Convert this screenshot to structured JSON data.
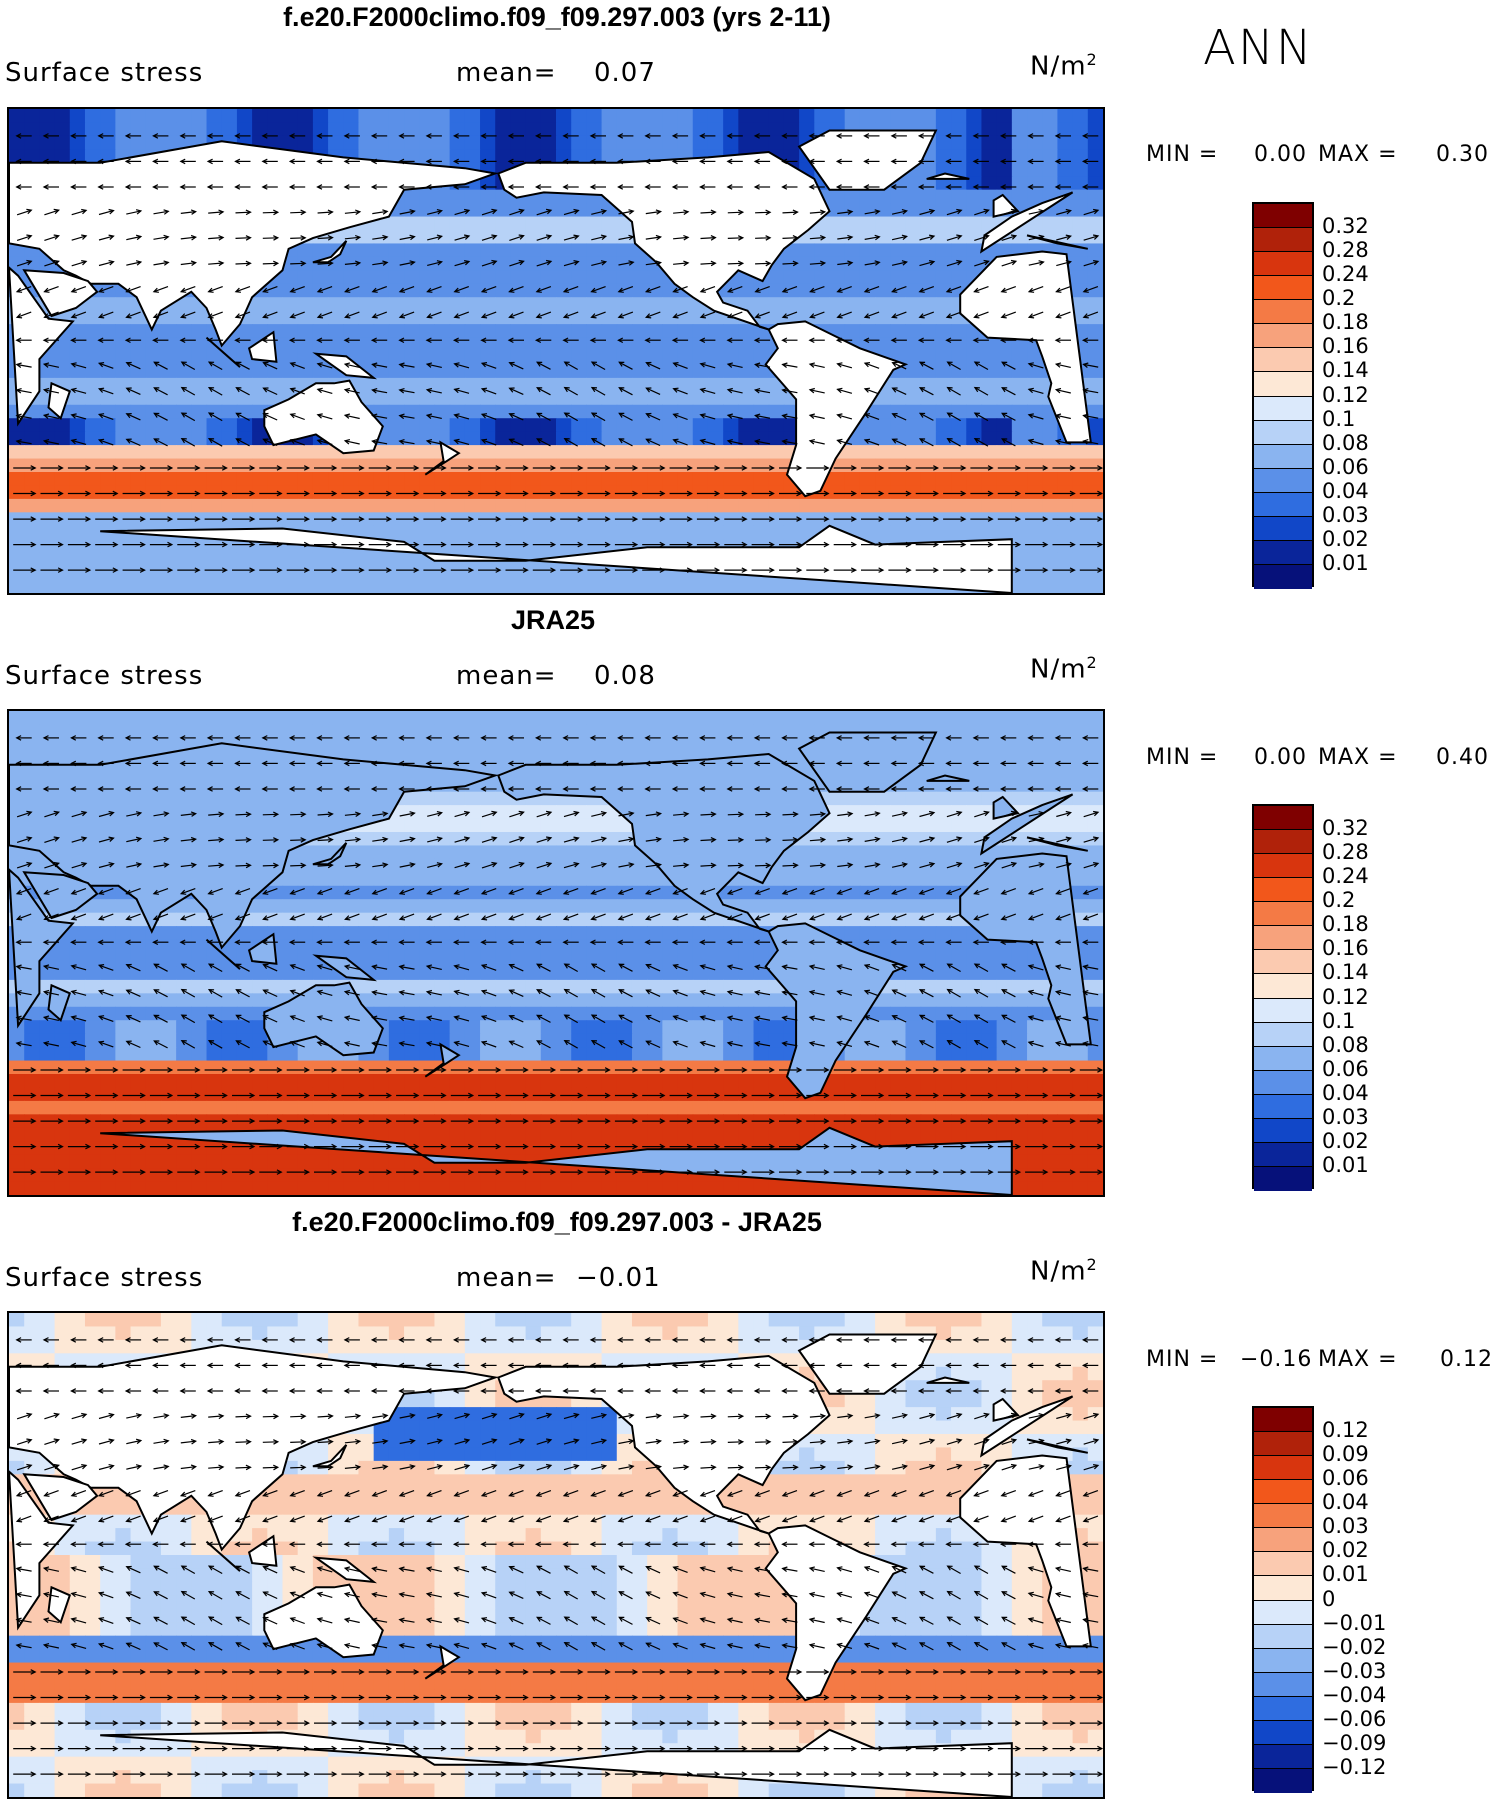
{
  "season_label": "ANN",
  "panels": [
    {
      "title": "f.e20.F2000climo.f09_f09.297.003 (yrs 2-11)",
      "variable": "Surface stress",
      "mean_label": "mean=",
      "mean_value": "0.07",
      "units": "N/m",
      "units_exp": "2",
      "min_label": "MIN =",
      "min_value": "0.00",
      "max_label": "MAX =",
      "max_value": "0.30",
      "colorbar_ticks": [
        "0.32",
        "0.28",
        "0.24",
        "0.2",
        "0.18",
        "0.16",
        "0.14",
        "0.12",
        "0.1",
        "0.08",
        "0.06",
        "0.04",
        "0.03",
        "0.02",
        "0.01"
      ],
      "pattern": "model"
    },
    {
      "title": "JRA25",
      "variable": "Surface stress",
      "mean_label": "mean=",
      "mean_value": "0.08",
      "units": "N/m",
      "units_exp": "2",
      "min_label": "MIN =",
      "min_value": "0.00",
      "max_label": "MAX =",
      "max_value": "0.40",
      "colorbar_ticks": [
        "0.32",
        "0.28",
        "0.24",
        "0.2",
        "0.18",
        "0.16",
        "0.14",
        "0.12",
        "0.1",
        "0.08",
        "0.06",
        "0.04",
        "0.03",
        "0.02",
        "0.01"
      ],
      "pattern": "obs"
    },
    {
      "title": "f.e20.F2000climo.f09_f09.297.003 - JRA25",
      "variable": "Surface stress",
      "mean_label": "mean=",
      "mean_value": "−0.01",
      "units": "N/m",
      "units_exp": "2",
      "min_label": "MIN =",
      "min_value": "−0.16",
      "max_label": "MAX =",
      "max_value": "0.12",
      "colorbar_ticks": [
        "0.12",
        "0.09",
        "0.06",
        "0.04",
        "0.03",
        "0.02",
        "0.01",
        "0",
        "−0.01",
        "−0.02",
        "−0.03",
        "−0.04",
        "−0.06",
        "−0.09",
        "−0.12"
      ],
      "pattern": "diff"
    }
  ],
  "colors": {
    "abs_scale": [
      "#7f0000",
      "#b0220a",
      "#d8350e",
      "#f2571b",
      "#f47a45",
      "#f7a27c",
      "#fbcab0",
      "#fde8d6",
      "#dbe9fb",
      "#b7d2f7",
      "#8ab4f0",
      "#5b90e8",
      "#2f6de0",
      "#1147c8",
      "#0a259a",
      "#06117a"
    ],
    "diff_scale": [
      "#7f0000",
      "#b0220a",
      "#d8350e",
      "#f2571b",
      "#f47a45",
      "#f7a27c",
      "#fbcab0",
      "#fde8d6",
      "#dbe9fb",
      "#b7d2f7",
      "#8ab4f0",
      "#5b90e8",
      "#2f6de0",
      "#1147c8",
      "#0a259a",
      "#06117a"
    ],
    "land": "#ffffff",
    "coast": "#000000"
  }
}
